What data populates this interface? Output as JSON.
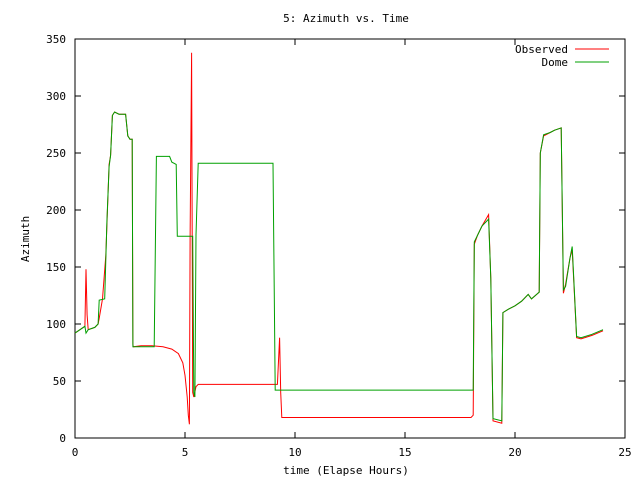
{
  "chart_data": {
    "type": "line",
    "title": "5: Azimuth vs. Time",
    "xlabel": "time (Elapse Hours)",
    "ylabel": "Azimuth",
    "xlim": [
      0,
      25
    ],
    "ylim": [
      0,
      350
    ],
    "xticks": [
      0,
      5,
      10,
      15,
      20,
      25
    ],
    "yticks": [
      0,
      50,
      100,
      150,
      200,
      250,
      300,
      350
    ],
    "legend_position": "top-right",
    "grid": false,
    "series": [
      {
        "name": "Observed",
        "color": "#ff0000",
        "points": [
          [
            0,
            92
          ],
          [
            0.3,
            96
          ],
          [
            0.45,
            98
          ],
          [
            0.5,
            148
          ],
          [
            0.55,
            108
          ],
          [
            0.6,
            95
          ],
          [
            0.9,
            97
          ],
          [
            1.05,
            100
          ],
          [
            1.1,
            105
          ],
          [
            1.25,
            122
          ],
          [
            1.4,
            160
          ],
          [
            1.55,
            240
          ],
          [
            1.62,
            248
          ],
          [
            1.7,
            283
          ],
          [
            1.8,
            286
          ],
          [
            2.0,
            284
          ],
          [
            2.3,
            284
          ],
          [
            2.4,
            265
          ],
          [
            2.5,
            262
          ],
          [
            2.6,
            262
          ],
          [
            2.63,
            82
          ],
          [
            2.65,
            80
          ],
          [
            3.0,
            81
          ],
          [
            3.5,
            81
          ],
          [
            4.0,
            80
          ],
          [
            4.4,
            78
          ],
          [
            4.7,
            74
          ],
          [
            4.9,
            66
          ],
          [
            5.0,
            55
          ],
          [
            5.1,
            36
          ],
          [
            5.15,
            20
          ],
          [
            5.2,
            12
          ],
          [
            5.23,
            175
          ],
          [
            5.3,
            338
          ],
          [
            5.35,
            40
          ],
          [
            5.4,
            36
          ],
          [
            5.5,
            45
          ],
          [
            5.6,
            47
          ],
          [
            9.0,
            47
          ],
          [
            9.2,
            47
          ],
          [
            9.3,
            88
          ],
          [
            9.35,
            40
          ],
          [
            9.4,
            18
          ],
          [
            18.0,
            18
          ],
          [
            18.1,
            20
          ],
          [
            18.15,
            170
          ],
          [
            18.3,
            178
          ],
          [
            18.5,
            186
          ],
          [
            18.8,
            196
          ],
          [
            18.9,
            140
          ],
          [
            19.0,
            15
          ],
          [
            19.4,
            13
          ],
          [
            19.45,
            110
          ],
          [
            19.7,
            113
          ],
          [
            20.0,
            116
          ],
          [
            20.3,
            120
          ],
          [
            20.6,
            126
          ],
          [
            20.75,
            122
          ],
          [
            21.1,
            128
          ],
          [
            21.15,
            250
          ],
          [
            21.3,
            265
          ],
          [
            21.6,
            268
          ],
          [
            21.8,
            270
          ],
          [
            22.1,
            272
          ],
          [
            22.2,
            127
          ],
          [
            22.3,
            135
          ],
          [
            22.5,
            158
          ],
          [
            22.6,
            165
          ],
          [
            22.8,
            88
          ],
          [
            23.0,
            87
          ],
          [
            23.5,
            90
          ],
          [
            24.0,
            94
          ]
        ]
      },
      {
        "name": "Dome",
        "color": "#00a000",
        "points": [
          [
            0,
            92
          ],
          [
            0.3,
            96
          ],
          [
            0.45,
            98
          ],
          [
            0.5,
            92
          ],
          [
            0.6,
            95
          ],
          [
            0.9,
            97
          ],
          [
            1.05,
            100
          ],
          [
            1.1,
            121
          ],
          [
            1.35,
            122
          ],
          [
            1.45,
            190
          ],
          [
            1.55,
            238
          ],
          [
            1.62,
            248
          ],
          [
            1.7,
            283
          ],
          [
            1.8,
            286
          ],
          [
            2.0,
            284
          ],
          [
            2.3,
            284
          ],
          [
            2.4,
            265
          ],
          [
            2.5,
            262
          ],
          [
            2.6,
            262
          ],
          [
            2.63,
            80
          ],
          [
            3.3,
            80
          ],
          [
            3.6,
            80
          ],
          [
            3.7,
            247
          ],
          [
            4.3,
            247
          ],
          [
            4.4,
            242
          ],
          [
            4.6,
            240
          ],
          [
            4.65,
            177
          ],
          [
            5.3,
            177
          ],
          [
            5.35,
            177
          ],
          [
            5.4,
            40
          ],
          [
            5.45,
            36
          ],
          [
            5.5,
            178
          ],
          [
            5.6,
            241
          ],
          [
            9.0,
            241
          ],
          [
            9.1,
            42
          ],
          [
            18.1,
            42
          ],
          [
            18.15,
            172
          ],
          [
            18.3,
            178
          ],
          [
            18.5,
            186
          ],
          [
            18.8,
            192
          ],
          [
            18.9,
            140
          ],
          [
            19.0,
            17
          ],
          [
            19.4,
            15
          ],
          [
            19.45,
            110
          ],
          [
            19.7,
            113
          ],
          [
            20.0,
            116
          ],
          [
            20.3,
            120
          ],
          [
            20.6,
            126
          ],
          [
            20.75,
            122
          ],
          [
            21.1,
            128
          ],
          [
            21.15,
            250
          ],
          [
            21.3,
            266
          ],
          [
            21.6,
            268
          ],
          [
            21.8,
            270
          ],
          [
            22.1,
            272
          ],
          [
            22.2,
            130
          ],
          [
            22.3,
            133
          ],
          [
            22.5,
            158
          ],
          [
            22.6,
            168
          ],
          [
            22.8,
            89
          ],
          [
            23.0,
            88
          ],
          [
            23.5,
            91
          ],
          [
            24.0,
            95
          ]
        ]
      }
    ]
  }
}
